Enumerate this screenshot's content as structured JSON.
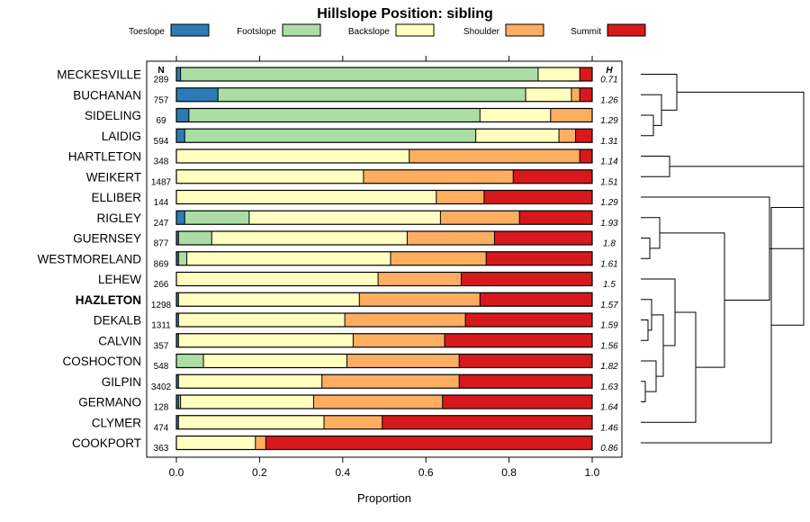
{
  "chart_data": {
    "type": "bar",
    "orientation": "horizontal",
    "stacked": true,
    "title": "Hillslope Position: sibling",
    "xlabel": "Proportion",
    "ylabel": "",
    "xlim": [
      0,
      1
    ],
    "x_ticks": [
      "0.0",
      "0.2",
      "0.4",
      "0.6",
      "0.8",
      "1.0"
    ],
    "grid": false,
    "legend_position": "top",
    "n_header": "N",
    "h_header": "H",
    "highlight": "HAZLETON",
    "series": [
      {
        "name": "Toeslope",
        "color": "#2C7BB6"
      },
      {
        "name": "Footslope",
        "color": "#ABDDA4"
      },
      {
        "name": "Backslope",
        "color": "#FFFFBF"
      },
      {
        "name": "Shoulder",
        "color": "#FDAE61"
      },
      {
        "name": "Summit",
        "color": "#D7191C"
      }
    ],
    "rows": [
      {
        "label": "MECKESVILLE",
        "n": "289",
        "h": "0.71",
        "values": [
          0.01,
          0.86,
          0.1,
          0.0,
          0.03
        ]
      },
      {
        "label": "BUCHANAN",
        "n": "757",
        "h": "1.26",
        "values": [
          0.1,
          0.74,
          0.11,
          0.02,
          0.03
        ]
      },
      {
        "label": "SIDELING",
        "n": "69",
        "h": "1.29",
        "values": [
          0.03,
          0.7,
          0.17,
          0.1,
          0.0
        ]
      },
      {
        "label": "LAIDIG",
        "n": "594",
        "h": "1.31",
        "values": [
          0.02,
          0.7,
          0.2,
          0.04,
          0.04
        ]
      },
      {
        "label": "HARTLETON",
        "n": "348",
        "h": "1.14",
        "values": [
          0.0,
          0.0,
          0.56,
          0.41,
          0.03
        ]
      },
      {
        "label": "WEIKERT",
        "n": "1487",
        "h": "1.51",
        "values": [
          0.0,
          0.0,
          0.45,
          0.36,
          0.19
        ]
      },
      {
        "label": "ELLIBER",
        "n": "144",
        "h": "1.29",
        "values": [
          0.0,
          0.0,
          0.625,
          0.115,
          0.26
        ]
      },
      {
        "label": "RIGLEY",
        "n": "247",
        "h": "1.93",
        "values": [
          0.02,
          0.155,
          0.46,
          0.19,
          0.175
        ]
      },
      {
        "label": "GUERNSEY",
        "n": "877",
        "h": "1.8",
        "values": [
          0.005,
          0.08,
          0.47,
          0.21,
          0.235
        ]
      },
      {
        "label": "WESTMORELAND",
        "n": "869",
        "h": "1.61",
        "values": [
          0.005,
          0.02,
          0.49,
          0.23,
          0.255
        ]
      },
      {
        "label": "LEHEW",
        "n": "266",
        "h": "1.5",
        "values": [
          0.0,
          0.0,
          0.485,
          0.2,
          0.315
        ]
      },
      {
        "label": "HAZLETON",
        "n": "1298",
        "h": "1.57",
        "values": [
          0.005,
          0.0,
          0.435,
          0.29,
          0.27
        ]
      },
      {
        "label": "DEKALB",
        "n": "1311",
        "h": "1.59",
        "values": [
          0.005,
          0.0,
          0.4,
          0.29,
          0.305
        ]
      },
      {
        "label": "CALVIN",
        "n": "357",
        "h": "1.56",
        "values": [
          0.005,
          0.0,
          0.42,
          0.22,
          0.355
        ]
      },
      {
        "label": "COSHOCTON",
        "n": "548",
        "h": "1.82",
        "values": [
          0.0,
          0.065,
          0.345,
          0.27,
          0.32
        ]
      },
      {
        "label": "GILPIN",
        "n": "3402",
        "h": "1.63",
        "values": [
          0.005,
          0.0,
          0.345,
          0.33,
          0.32
        ]
      },
      {
        "label": "GERMANO",
        "n": "128",
        "h": "1.64",
        "values": [
          0.005,
          0.005,
          0.32,
          0.31,
          0.36
        ]
      },
      {
        "label": "CLYMER",
        "n": "474",
        "h": "1.46",
        "values": [
          0.005,
          0.0,
          0.35,
          0.14,
          0.505
        ]
      },
      {
        "label": "COOKPORT",
        "n": "363",
        "h": "0.86",
        "values": [
          0.0,
          0.0,
          0.19,
          0.025,
          0.785
        ]
      }
    ]
  }
}
